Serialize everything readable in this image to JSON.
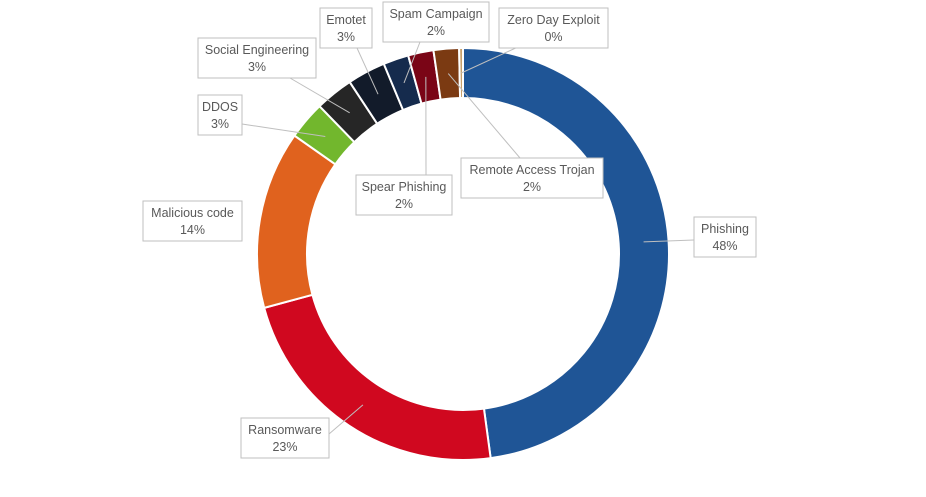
{
  "chart_data": {
    "type": "pie",
    "variant": "doughnut",
    "title": "",
    "categories": [
      "Phishing",
      "Ransomware",
      "Malicious code",
      "DDOS",
      "Social Engineering",
      "Emotet",
      "Spam Campaign",
      "Spear Phishing",
      "Remote Access Trojan",
      "Zero Day Exploit"
    ],
    "values": [
      48,
      23,
      14,
      3,
      3,
      3,
      2,
      2,
      2,
      0.3
    ],
    "labels": [
      "48%",
      "23%",
      "14%",
      "3%",
      "3%",
      "3%",
      "2%",
      "2%",
      "2%",
      "0%"
    ],
    "colors": [
      "#1f5596",
      "#d0081f",
      "#e0621e",
      "#72b72d",
      "#262626",
      "#121b2a",
      "#152b4d",
      "#7a0516",
      "#7b3a12",
      "#c9a06a"
    ],
    "legend": "none",
    "data_labels": "callouts with leader lines"
  }
}
